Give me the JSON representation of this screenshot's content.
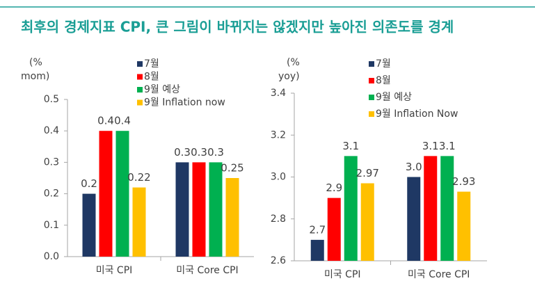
{
  "title": "최후의 경제지표 CPI, 큰 그림이 바뀌지는 않겠지만 높아진 의존도를 경계",
  "chart_data": [
    {
      "type": "bar",
      "y_label": [
        "(%",
        "mom)"
      ],
      "categories": [
        "미국 CPI",
        "미국 Core CPI"
      ],
      "series": [
        {
          "name": "7월",
          "color": "#1f3864",
          "values": [
            0.2,
            0.3
          ]
        },
        {
          "name": "8월",
          "color": "#ff0000",
          "values": [
            0.4,
            0.3
          ]
        },
        {
          "name": "9월 예상",
          "color": "#00b050",
          "values": [
            0.4,
            0.3
          ]
        },
        {
          "name": "9월 Inflation now",
          "color": "#ffc000",
          "values": [
            0.22,
            0.25
          ]
        }
      ],
      "ylim": [
        0,
        0.5
      ],
      "yticks": [
        {
          "value": 0,
          "label": "0.0"
        },
        0.1,
        0.2,
        0.3,
        0.4,
        0.5
      ]
    },
    {
      "type": "bar",
      "y_label": [
        "(%",
        "yoy)"
      ],
      "categories": [
        "미국 CPI",
        "미국 Core CPI"
      ],
      "series": [
        {
          "name": "7월",
          "color": "#1f3864",
          "values": [
            2.7,
            3.0
          ],
          "value_labels": [
            "2.7",
            "3.0"
          ]
        },
        {
          "name": "8월",
          "color": "#ff0000",
          "values": [
            2.9,
            3.1
          ]
        },
        {
          "name": "9월 예상",
          "color": "#00b050",
          "values": [
            3.1,
            3.1
          ]
        },
        {
          "name": "9월 Inflation Now",
          "color": "#ffc000",
          "values": [
            2.97,
            2.93
          ]
        }
      ],
      "ylim": [
        2.6,
        3.4
      ],
      "yticks": [
        2.6,
        2.8,
        {
          "value": 3,
          "label": "3.0"
        },
        3.2,
        3.4
      ]
    }
  ]
}
